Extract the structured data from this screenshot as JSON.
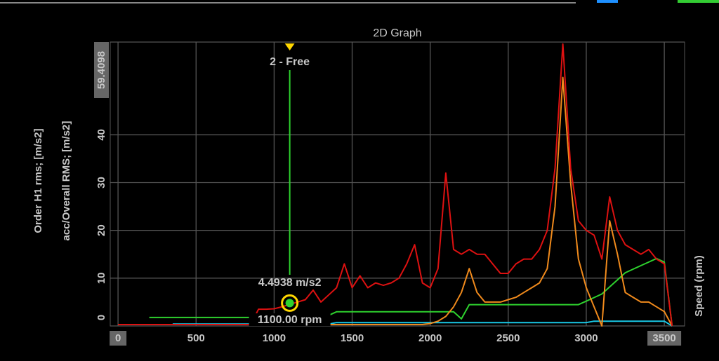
{
  "chart_data": {
    "type": "line",
    "title": "2D Graph",
    "x": [
      0,
      50,
      100,
      150,
      200,
      250,
      300,
      350,
      400,
      450,
      500,
      550,
      600,
      650,
      700,
      750,
      800,
      850,
      900,
      950,
      1000,
      1050,
      1100,
      1150,
      1200,
      1250,
      1300,
      1350,
      1400,
      1450,
      1500,
      1550,
      1600,
      1650,
      1700,
      1750,
      1800,
      1850,
      1900,
      1950,
      2000,
      2050,
      2100,
      2150,
      2200,
      2250,
      2300,
      2350,
      2400,
      2450,
      2500,
      2550,
      2600,
      2650,
      2700,
      2750,
      2800,
      2850,
      2900,
      2950,
      3000,
      3050,
      3100,
      3150,
      3200,
      3250,
      3300,
      3350,
      3400,
      3450,
      3500,
      3550
    ],
    "xlim": [
      -50,
      3630
    ],
    "xticks": [
      0,
      500,
      1000,
      1500,
      2000,
      2500,
      3000,
      3500
    ],
    "ylim": [
      0,
      59.4098
    ],
    "yticks": [
      0,
      10,
      20,
      30,
      40,
      59.4098
    ],
    "y2lim": [
      0,
      40000
    ],
    "y2label": "Speed (rpm)",
    "grid": true,
    "series": [
      {
        "name": "Order H1  rms; [m/s2]",
        "color": "#19c8e6",
        "values": [
          null,
          null,
          null,
          null,
          null,
          null,
          null,
          0.4,
          0.4,
          0.4,
          0.4,
          0.4,
          0.4,
          0.4,
          0.4,
          0.4,
          0.4,
          0.4,
          0.4,
          0.4,
          0.4,
          0.4,
          0.4,
          0.4,
          0.4,
          0.4,
          0.4,
          0.4,
          0.7,
          0.7,
          0.7,
          0.7,
          0.7,
          0.7,
          0.7,
          0.7,
          0.7,
          0.7,
          0.7,
          0.7,
          0.7,
          0.7,
          0.7,
          0.7,
          0.7,
          0.7,
          0.7,
          0.7,
          0.7,
          0.7,
          0.7,
          0.7,
          0.7,
          0.7,
          0.7,
          0.7,
          0.7,
          0.7,
          0.7,
          0.7,
          0.7,
          1,
          1,
          1,
          1,
          1,
          1,
          1,
          1,
          1,
          1,
          0
        ]
      },
      {
        "name": "acc/Overall RMS; [m/s2]",
        "color": "#dd1111",
        "values": [
          0.3,
          0.3,
          0.3,
          0.3,
          0.3,
          0.3,
          0.3,
          0.3,
          0.3,
          0.3,
          0.3,
          0.3,
          0.3,
          0.3,
          0.3,
          0.3,
          0.3,
          0.3,
          3.5,
          3.5,
          3.6,
          4,
          4.5,
          5,
          5.5,
          7.5,
          5,
          6.5,
          8,
          13,
          8,
          10.5,
          8,
          9,
          8.5,
          9,
          10,
          13,
          17,
          9,
          8,
          12,
          32,
          16,
          15,
          16,
          15,
          15,
          13,
          11,
          11,
          13,
          14,
          14,
          16,
          20,
          33,
          59,
          33,
          22,
          20,
          19,
          14,
          27,
          20,
          17,
          16,
          15,
          16,
          14,
          13,
          0
        ]
      },
      {
        "color": "#f08a1c",
        "values": [
          0.3,
          0.3,
          0.3,
          0.3,
          0.3,
          0.3,
          0.3,
          0.3,
          0.3,
          0.3,
          0.3,
          0.3,
          0.3,
          0.3,
          0.3,
          0.3,
          0.3,
          0.3,
          0.3,
          0.3,
          0.3,
          0.3,
          0.3,
          0.3,
          0.3,
          0.3,
          0.3,
          0.3,
          0.3,
          0.3,
          0.3,
          0.3,
          0.3,
          0.3,
          0.3,
          0.3,
          0.3,
          0.3,
          0.3,
          0.3,
          0.5,
          1,
          2,
          4,
          7,
          12,
          7,
          5,
          5,
          5,
          5.5,
          6,
          7,
          8,
          9,
          12,
          25,
          52,
          30,
          14,
          8,
          4,
          0,
          22,
          15,
          7,
          6,
          5,
          5,
          4,
          3,
          0
        ]
      },
      {
        "color": "#2ed12e",
        "axis": "y2",
        "values": [
          null,
          null,
          null,
          null,
          1200,
          1200,
          1200,
          1200,
          1200,
          1200,
          1200,
          1200,
          1200,
          1200,
          1200,
          1200,
          1200,
          1200,
          1500,
          1500,
          1500,
          1500,
          1500,
          1500,
          1500,
          1500,
          1500,
          1500,
          2000,
          2000,
          2000,
          2000,
          2000,
          2000,
          2000,
          2000,
          2000,
          2000,
          2000,
          2000,
          2000,
          2000,
          2000,
          2000,
          1000,
          3000,
          3000,
          3000,
          3000,
          3000,
          3000,
          3000,
          3000,
          3000,
          3000,
          3000,
          3000,
          3000,
          3000,
          3000,
          3500,
          4000,
          4500,
          5500,
          6500,
          7500,
          8000,
          8500,
          9000,
          9500,
          9000,
          0
        ]
      }
    ],
    "cursor": {
      "x": 1100,
      "value": 4.4938,
      "label": "2 - Free",
      "value_label": "4.4938 m/s2",
      "x_label": "1100.00 rpm",
      "color": "#2ed12e"
    }
  }
}
